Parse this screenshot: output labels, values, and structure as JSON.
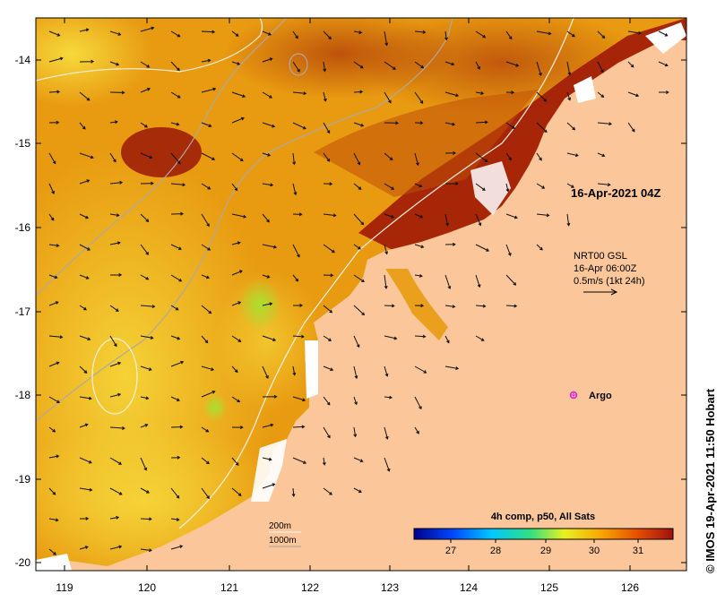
{
  "map": {
    "date_label": "16-Apr-2021 04Z",
    "current_model": "NRT00 GSL",
    "current_time": "16-Apr 06:00Z",
    "current_scale": "0.5m/s (1kt 24h)",
    "argo_label": "Argo",
    "depth_contours": [
      "200m",
      "1000m"
    ],
    "credit": "© IMOS 19-Apr-2021 11:50 Hobart",
    "colors": {
      "land": "#fbc79a",
      "sst_warm": "#f0a000",
      "sst_hot": "#9a1808",
      "sst_cool": "#f8d030",
      "argo": "#e020e0"
    }
  },
  "axes": {
    "x_ticks": [
      "119",
      "120",
      "121",
      "122",
      "123",
      "124",
      "125",
      "126"
    ],
    "y_ticks": [
      "-14",
      "-15",
      "-16",
      "-17",
      "-18",
      "-19",
      "-20"
    ]
  },
  "colorbar": {
    "title": "4h comp, p50, All Sats",
    "ticks": [
      "27",
      "28",
      "29",
      "30",
      "31"
    ],
    "colors": [
      "#00008c",
      "#0048ff",
      "#00c8ff",
      "#30e080",
      "#e8f020",
      "#f8a800",
      "#e85000",
      "#a01010"
    ]
  }
}
